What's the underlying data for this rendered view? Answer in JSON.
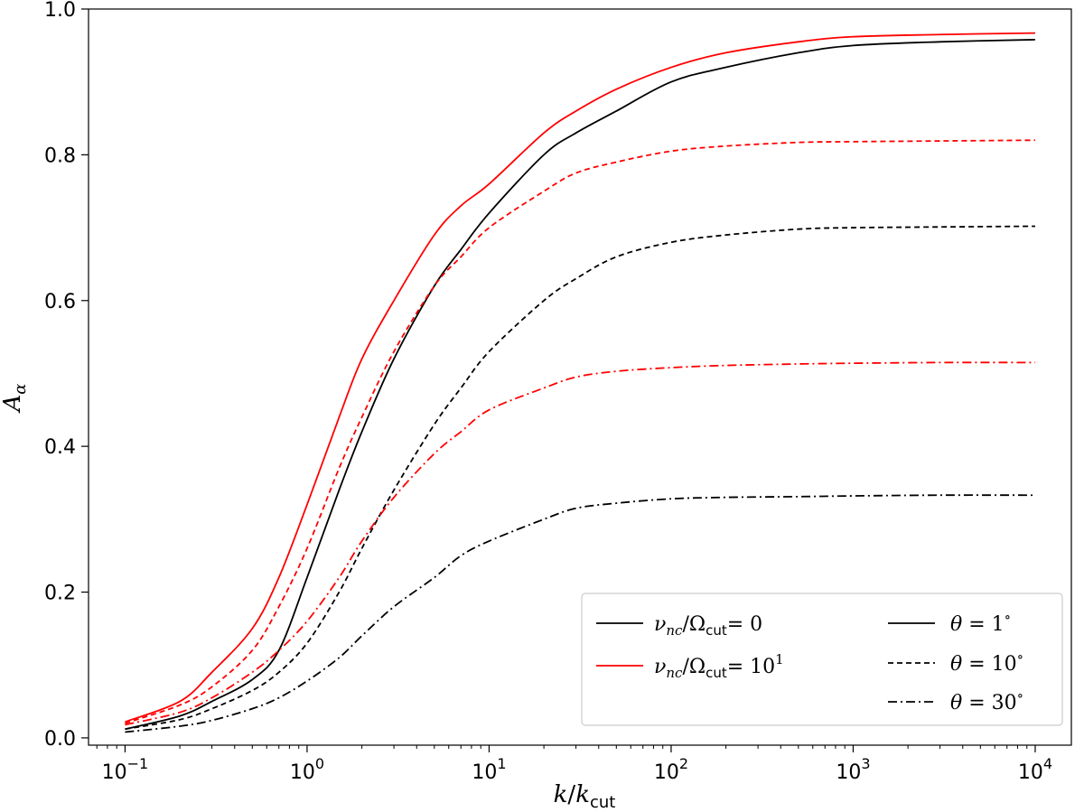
{
  "chart_data": {
    "type": "line",
    "xscale": "log",
    "xlim": [
      0.063,
      15800
    ],
    "ylim": [
      -0.01,
      1.0
    ],
    "xlabel": {
      "var": "k",
      "slash": "/",
      "base": "k",
      "sub": "cut"
    },
    "ylabel": {
      "var": "A",
      "sub": "α"
    },
    "xticks": [
      {
        "value": 0.1,
        "base": "10",
        "exp": "−1"
      },
      {
        "value": 1,
        "base": "10",
        "exp": "0"
      },
      {
        "value": 10,
        "base": "10",
        "exp": "1"
      },
      {
        "value": 100,
        "base": "10",
        "exp": "2"
      },
      {
        "value": 1000,
        "base": "10",
        "exp": "3"
      },
      {
        "value": 10000,
        "base": "10",
        "exp": "4"
      }
    ],
    "yticks": [
      {
        "value": 0.0,
        "label": "0.0"
      },
      {
        "value": 0.2,
        "label": "0.2"
      },
      {
        "value": 0.4,
        "label": "0.4"
      },
      {
        "value": 0.6,
        "label": "0.6"
      },
      {
        "value": 0.8,
        "label": "0.8"
      },
      {
        "value": 1.0,
        "label": "1.0"
      }
    ],
    "x": [
      0.1,
      0.2,
      0.3,
      0.5,
      0.7,
      1,
      1.5,
      2,
      3,
      5,
      7,
      10,
      20,
      30,
      50,
      100,
      200,
      500,
      1000,
      3000,
      10000
    ],
    "series": [
      {
        "name": "nu0-theta1",
        "color": "#000000",
        "dash": "solid",
        "values": [
          0.012,
          0.03,
          0.05,
          0.08,
          0.12,
          0.22,
          0.34,
          0.42,
          0.52,
          0.62,
          0.67,
          0.72,
          0.8,
          0.83,
          0.86,
          0.9,
          0.92,
          0.94,
          0.95,
          0.955,
          0.958
        ]
      },
      {
        "name": "nu0-theta10",
        "color": "#000000",
        "dash": "dashed",
        "values": [
          0.012,
          0.025,
          0.04,
          0.065,
          0.09,
          0.13,
          0.2,
          0.26,
          0.34,
          0.43,
          0.48,
          0.53,
          0.6,
          0.63,
          0.66,
          0.68,
          0.69,
          0.698,
          0.7,
          0.701,
          0.702
        ]
      },
      {
        "name": "nu0-theta30",
        "color": "#000000",
        "dash": "dashdot",
        "values": [
          0.008,
          0.016,
          0.024,
          0.04,
          0.055,
          0.078,
          0.11,
          0.14,
          0.18,
          0.22,
          0.25,
          0.27,
          0.3,
          0.315,
          0.322,
          0.328,
          0.33,
          0.331,
          0.332,
          0.333,
          0.333
        ]
      },
      {
        "name": "nu10-theta1",
        "color": "#ff0000",
        "dash": "solid",
        "values": [
          0.022,
          0.05,
          0.09,
          0.15,
          0.22,
          0.32,
          0.44,
          0.52,
          0.6,
          0.69,
          0.73,
          0.76,
          0.83,
          0.86,
          0.89,
          0.92,
          0.94,
          0.955,
          0.962,
          0.965,
          0.967
        ]
      },
      {
        "name": "nu10-theta10",
        "color": "#ff0000",
        "dash": "dashed",
        "values": [
          0.02,
          0.045,
          0.07,
          0.12,
          0.18,
          0.26,
          0.37,
          0.44,
          0.53,
          0.62,
          0.66,
          0.7,
          0.75,
          0.775,
          0.79,
          0.805,
          0.812,
          0.817,
          0.818,
          0.819,
          0.82
        ]
      },
      {
        "name": "nu10-theta30",
        "color": "#ff0000",
        "dash": "dashdot",
        "values": [
          0.018,
          0.035,
          0.055,
          0.09,
          0.12,
          0.16,
          0.22,
          0.27,
          0.33,
          0.39,
          0.42,
          0.45,
          0.48,
          0.495,
          0.503,
          0.508,
          0.511,
          0.513,
          0.514,
          0.515,
          0.515
        ]
      }
    ],
    "legend": {
      "placement": "lower-right",
      "color_entries": [
        {
          "color": "#000000",
          "var": "ν",
          "sub1": "nc",
          "slash": "/",
          "omega": "Ω",
          "sub2": "cut",
          "rhs": "= 0",
          "exp": ""
        },
        {
          "color": "#ff0000",
          "var": "ν",
          "sub1": "nc",
          "slash": "/",
          "omega": "Ω",
          "sub2": "cut",
          "rhs": "= 10",
          "exp": "1"
        }
      ],
      "style_entries": [
        {
          "dash": "solid",
          "var": "θ",
          "rhs": " = 1",
          "unit": "∘"
        },
        {
          "dash": "dashed",
          "var": "θ",
          "rhs": " = 10",
          "unit": "∘"
        },
        {
          "dash": "dashdot",
          "var": "θ",
          "rhs": " = 30",
          "unit": "∘"
        }
      ]
    }
  }
}
